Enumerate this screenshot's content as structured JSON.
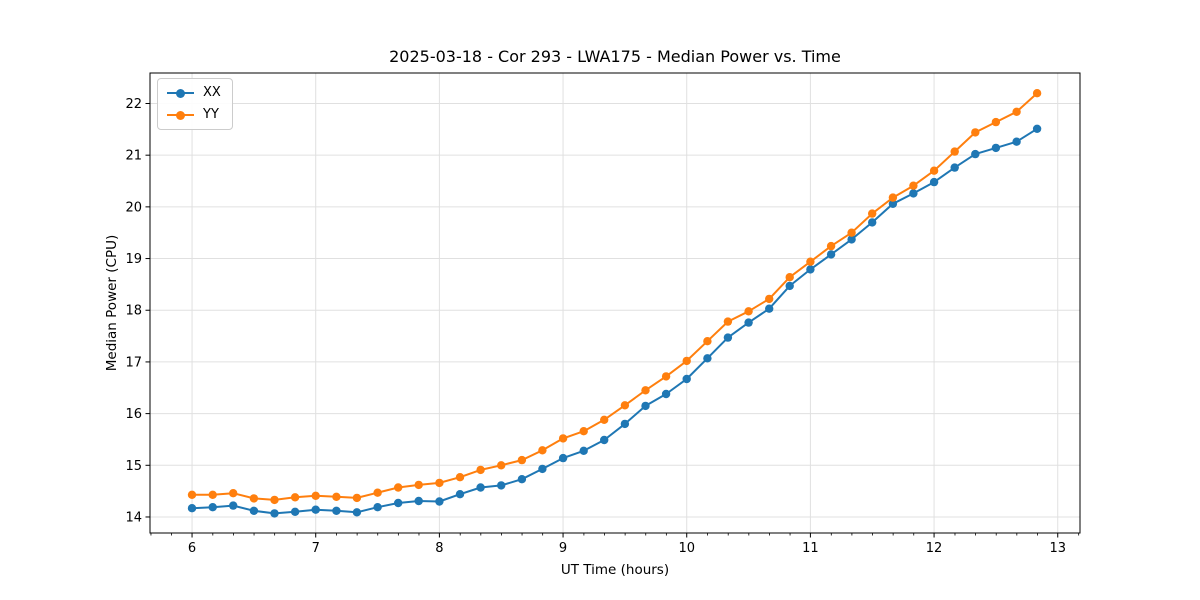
{
  "chart_data": {
    "type": "line",
    "title": "2025-03-18 - Cor 293 - LWA175 - Median Power vs. Time",
    "xlabel": "UT Time (hours)",
    "ylabel": "Median Power (CPU)",
    "xlim": [
      5.66,
      13.18
    ],
    "ylim": [
      13.69,
      22.59
    ],
    "xticks": [
      6,
      7,
      8,
      9,
      10,
      11,
      12,
      13
    ],
    "yticks": [
      14,
      15,
      16,
      17,
      18,
      19,
      20,
      21,
      22
    ],
    "x_minor_step": 0.1667,
    "grid": true,
    "grid_color": "#e0e0e0",
    "legend_position": "upper left",
    "x": [
      6.0,
      6.167,
      6.333,
      6.5,
      6.667,
      6.833,
      7.0,
      7.167,
      7.333,
      7.5,
      7.667,
      7.833,
      8.0,
      8.167,
      8.333,
      8.5,
      8.667,
      8.833,
      9.0,
      9.167,
      9.333,
      9.5,
      9.667,
      9.833,
      10.0,
      10.167,
      10.333,
      10.5,
      10.667,
      10.833,
      11.0,
      11.167,
      11.333,
      11.5,
      11.667,
      11.833,
      12.0,
      12.167,
      12.333,
      12.5,
      12.667,
      12.833
    ],
    "series": [
      {
        "name": "XX",
        "color": "#1f77b4",
        "values": [
          14.17,
          14.19,
          14.22,
          14.12,
          14.07,
          14.1,
          14.14,
          14.12,
          14.09,
          14.19,
          14.27,
          14.31,
          14.3,
          14.44,
          14.57,
          14.61,
          14.73,
          14.93,
          15.14,
          15.28,
          15.49,
          15.8,
          16.15,
          16.38,
          16.67,
          17.07,
          17.47,
          17.76,
          18.03,
          18.47,
          18.79,
          19.08,
          19.37,
          19.7,
          20.06,
          20.26,
          20.48,
          20.76,
          21.02,
          21.14,
          21.26,
          21.51
        ]
      },
      {
        "name": "YY",
        "color": "#ff7f0e",
        "values": [
          14.43,
          14.43,
          14.46,
          14.36,
          14.33,
          14.38,
          14.41,
          14.39,
          14.37,
          14.47,
          14.57,
          14.62,
          14.66,
          14.77,
          14.91,
          15.0,
          15.1,
          15.29,
          15.52,
          15.66,
          15.88,
          16.16,
          16.45,
          16.72,
          17.02,
          17.4,
          17.78,
          17.98,
          18.22,
          18.64,
          18.94,
          19.24,
          19.5,
          19.87,
          20.18,
          20.41,
          20.7,
          21.07,
          21.44,
          21.64,
          21.84,
          22.2
        ]
      }
    ]
  }
}
